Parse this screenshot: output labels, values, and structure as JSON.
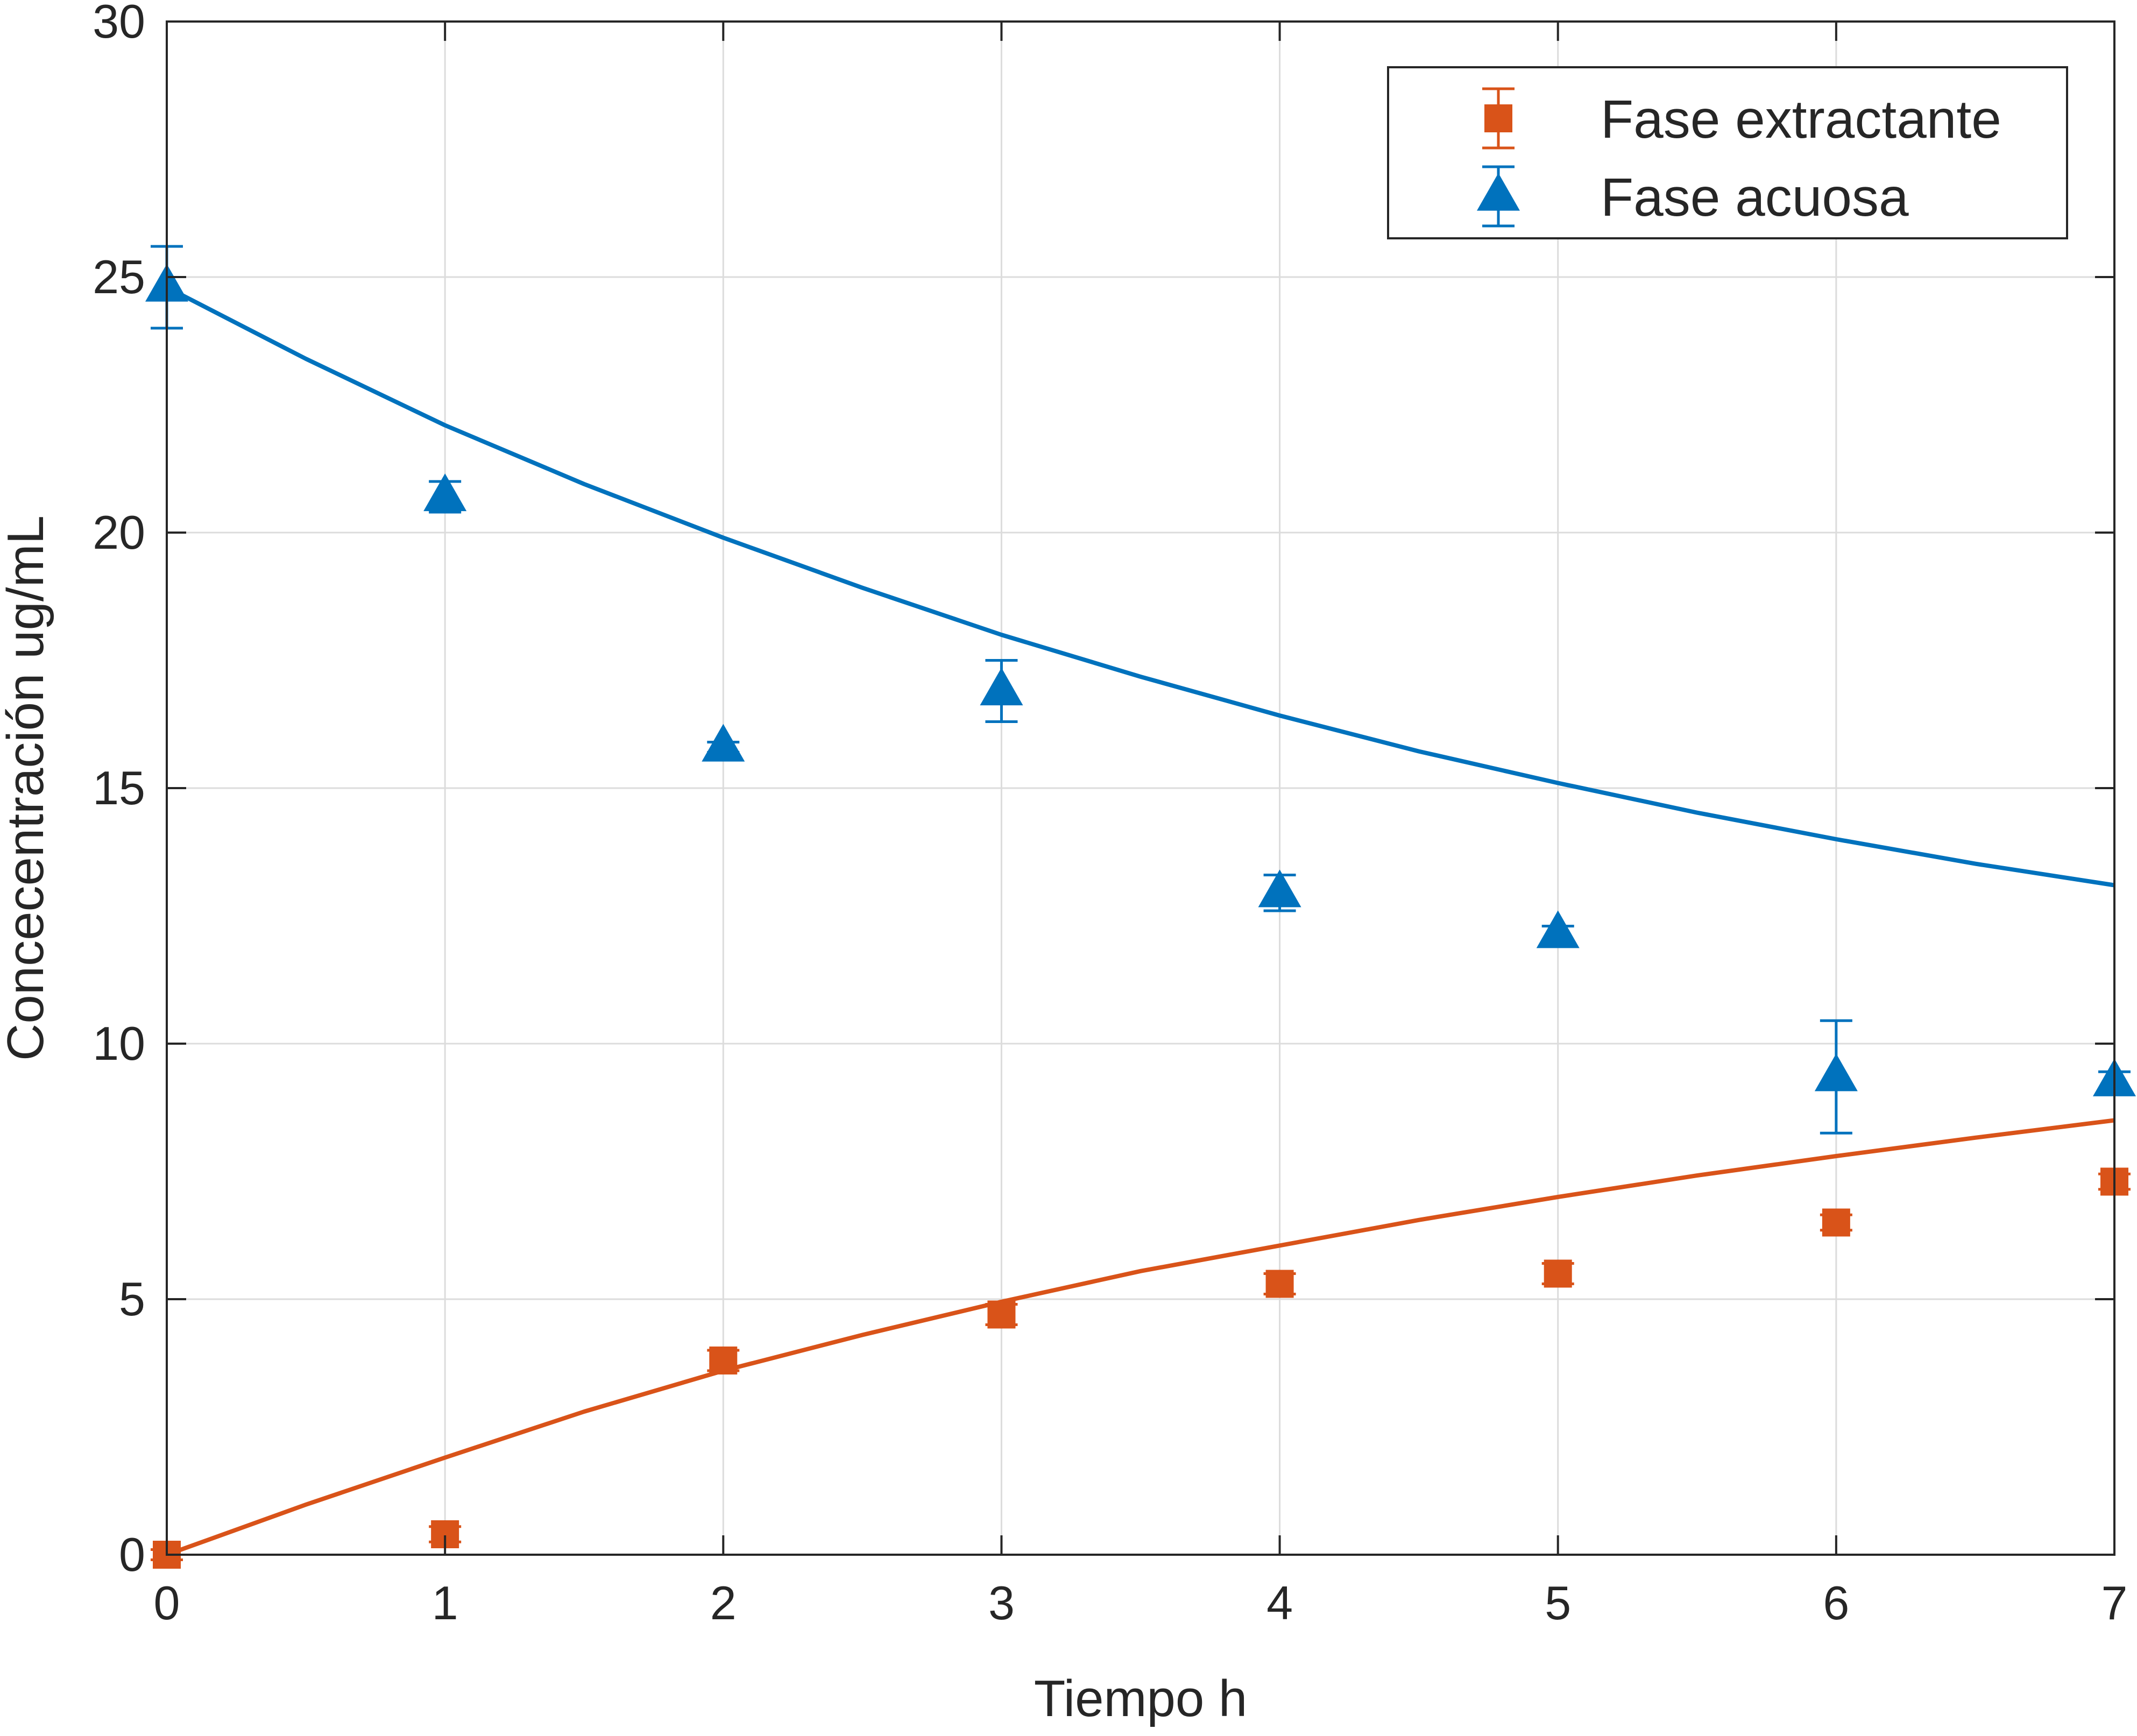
{
  "chart_data": {
    "type": "scatter",
    "xlabel": "Tiempo h",
    "ylabel": "Concecentración ug/mL",
    "xlim": [
      0,
      7
    ],
    "ylim": [
      0,
      30
    ],
    "x_ticks": [
      "0",
      "1",
      "2",
      "3",
      "4",
      "5",
      "6",
      "7"
    ],
    "y_ticks": [
      "0",
      "5",
      "10",
      "15",
      "20",
      "25",
      "30"
    ],
    "grid": true,
    "legend_position": "top-right",
    "series": [
      {
        "name": "Fase extractante",
        "marker": "square",
        "color": "#D95319",
        "points": [
          {
            "x": 0,
            "y": 0.0,
            "err": 0.1
          },
          {
            "x": 1,
            "y": 0.4,
            "err": 0.15
          },
          {
            "x": 2,
            "y": 3.8,
            "err": 0.2
          },
          {
            "x": 3,
            "y": 4.7,
            "err": 0.2
          },
          {
            "x": 4,
            "y": 5.3,
            "err": 0.2
          },
          {
            "x": 5,
            "y": 5.5,
            "err": 0.2
          },
          {
            "x": 6,
            "y": 6.5,
            "err": 0.15
          },
          {
            "x": 7,
            "y": 7.3,
            "err": 0.15
          }
        ],
        "fit": [
          [
            0,
            0
          ],
          [
            0.5,
            0.98
          ],
          [
            1,
            1.9
          ],
          [
            1.5,
            2.8
          ],
          [
            2,
            3.6
          ],
          [
            2.5,
            4.3
          ],
          [
            3,
            4.95
          ],
          [
            3.5,
            5.55
          ],
          [
            4,
            6.05
          ],
          [
            4.5,
            6.55
          ],
          [
            5,
            7.0
          ],
          [
            5.5,
            7.42
          ],
          [
            6,
            7.8
          ],
          [
            6.5,
            8.16
          ],
          [
            7,
            8.5
          ]
        ]
      },
      {
        "name": "Fase acuosa",
        "marker": "triangle",
        "color": "#0072BD",
        "points": [
          {
            "x": 0,
            "y": 24.8,
            "err": 0.8
          },
          {
            "x": 1,
            "y": 20.7,
            "err": 0.3
          },
          {
            "x": 2,
            "y": 15.8,
            "err": 0.1
          },
          {
            "x": 3,
            "y": 16.9,
            "err": 0.6
          },
          {
            "x": 4,
            "y": 12.95,
            "err": 0.35
          },
          {
            "x": 5,
            "y": 12.15,
            "err": 0.15
          },
          {
            "x": 6,
            "y": 9.35,
            "err": 1.1
          },
          {
            "x": 7,
            "y": 9.25,
            "err": 0.2
          }
        ],
        "fit": [
          [
            0,
            24.8
          ],
          [
            0.5,
            23.4
          ],
          [
            1,
            22.1
          ],
          [
            1.5,
            20.95
          ],
          [
            2,
            19.9
          ],
          [
            2.5,
            18.92
          ],
          [
            3,
            18.0
          ],
          [
            3.5,
            17.18
          ],
          [
            4,
            16.42
          ],
          [
            4.5,
            15.72
          ],
          [
            5,
            15.1
          ],
          [
            5.5,
            14.52
          ],
          [
            6,
            14.0
          ],
          [
            6.5,
            13.52
          ],
          [
            7,
            13.1
          ]
        ]
      }
    ]
  }
}
